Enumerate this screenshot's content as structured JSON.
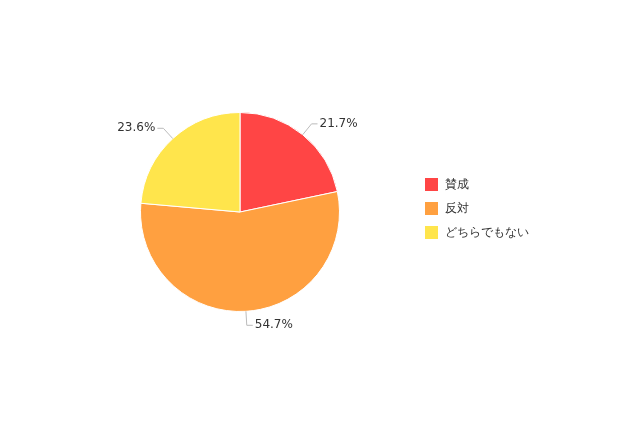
{
  "chart_data": {
    "type": "pie",
    "categories": [
      "賛成",
      "反対",
      "どちらでもない"
    ],
    "values": [
      21.7,
      54.7,
      23.6
    ],
    "value_labels": [
      "21.7%",
      "54.7%",
      "23.6%"
    ],
    "colors": [
      "#ff4545",
      "#ffa040",
      "#ffe54c"
    ],
    "data_labels": true,
    "legend": "right"
  }
}
